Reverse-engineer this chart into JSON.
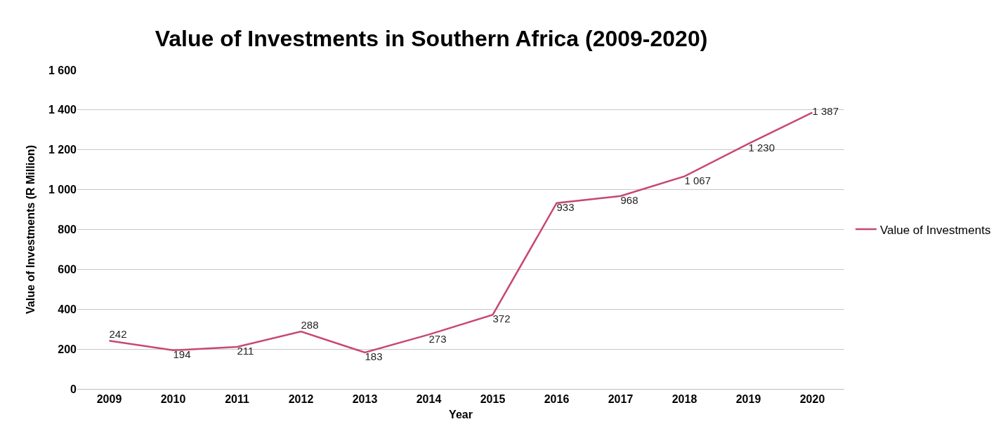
{
  "chart_data": {
    "type": "line",
    "title": "Value of Investments in Southern Africa (2009-2020)",
    "xlabel": "Year",
    "ylabel": "Value of Investments (R Million)",
    "categories": [
      "2009",
      "2010",
      "2011",
      "2012",
      "2013",
      "2014",
      "2015",
      "2016",
      "2017",
      "2018",
      "2019",
      "2020"
    ],
    "series": [
      {
        "name": "Value of Investments",
        "color": "#c8486e",
        "values": [
          242,
          194,
          211,
          288,
          183,
          273,
          372,
          933,
          968,
          1067,
          1230,
          1387
        ],
        "value_labels": [
          "242",
          "194",
          "211",
          "288",
          "183",
          "273",
          "372",
          "933",
          "968",
          "1 067",
          "1 230",
          "1 387"
        ]
      }
    ],
    "ylim": [
      0,
      1600
    ],
    "yticks": [
      0,
      200,
      400,
      600,
      800,
      {
        "value": 1000,
        "label": "1 000"
      },
      {
        "value": 1200,
        "label": "1 200"
      },
      {
        "value": 1400,
        "label": "1 400"
      },
      {
        "value": 1600,
        "label": "1 600"
      }
    ],
    "grid": "y",
    "legend": "right",
    "marker": "none",
    "line_style": "solid"
  }
}
